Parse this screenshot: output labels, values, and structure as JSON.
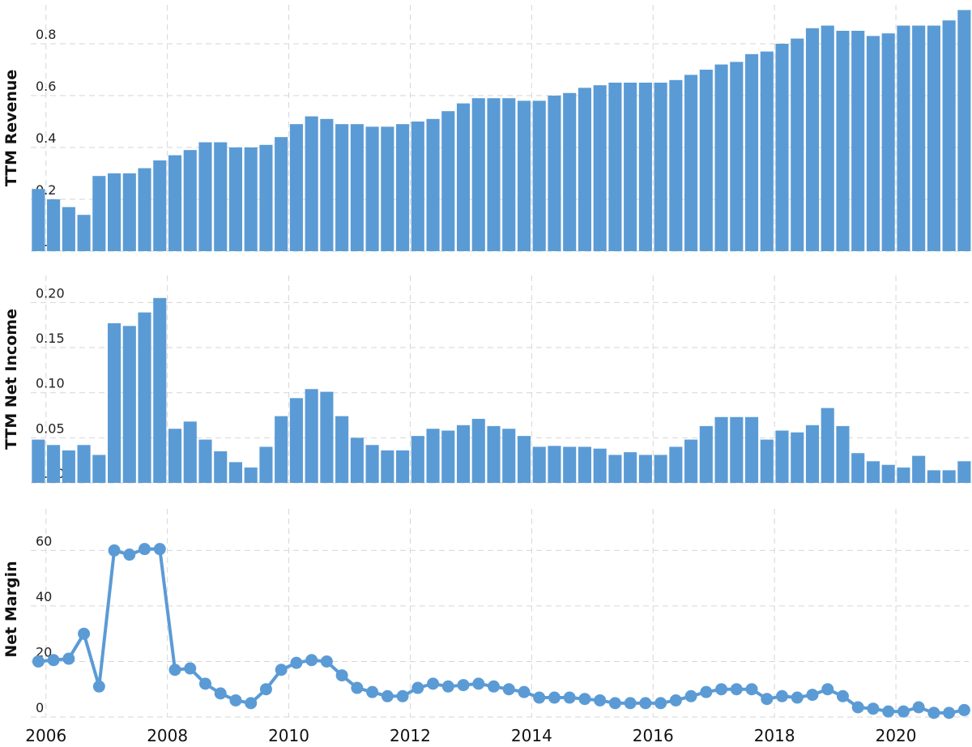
{
  "chart_data": [
    {
      "type": "bar",
      "ylabel": "TTM Revenue",
      "ylim": [
        0,
        0.95
      ],
      "yticks": [
        "0.0",
        "0.2",
        "0.4",
        "0.6",
        "0.8"
      ],
      "ytick_values": [
        0,
        0.2,
        0.4,
        0.6,
        0.8
      ],
      "color": "#5b9bd5",
      "x_start": 2005.75,
      "x_step": 0.25,
      "values": [
        0.24,
        0.2,
        0.17,
        0.14,
        0.29,
        0.3,
        0.3,
        0.32,
        0.35,
        0.37,
        0.39,
        0.42,
        0.42,
        0.4,
        0.4,
        0.41,
        0.44,
        0.49,
        0.52,
        0.51,
        0.49,
        0.49,
        0.48,
        0.48,
        0.49,
        0.5,
        0.51,
        0.54,
        0.57,
        0.59,
        0.59,
        0.59,
        0.58,
        0.58,
        0.6,
        0.61,
        0.63,
        0.64,
        0.65,
        0.65,
        0.65,
        0.65,
        0.66,
        0.68,
        0.7,
        0.72,
        0.73,
        0.76,
        0.77,
        0.8,
        0.82,
        0.86,
        0.87,
        0.85,
        0.85,
        0.83,
        0.84,
        0.87,
        0.87,
        0.87,
        0.89,
        0.93
      ]
    },
    {
      "type": "bar",
      "ylabel": "TTM Net Income",
      "ylim": [
        0,
        0.23
      ],
      "yticks": [
        "0.00",
        "0.05",
        "0.10",
        "0.15",
        "0.20"
      ],
      "ytick_values": [
        0,
        0.05,
        0.1,
        0.15,
        0.2
      ],
      "color": "#5b9bd5",
      "x_start": 2005.75,
      "x_step": 0.25,
      "values": [
        0.048,
        0.042,
        0.036,
        0.042,
        0.031,
        0.177,
        0.174,
        0.189,
        0.205,
        0.06,
        0.068,
        0.048,
        0.035,
        0.023,
        0.017,
        0.04,
        0.074,
        0.094,
        0.104,
        0.101,
        0.074,
        0.05,
        0.042,
        0.036,
        0.036,
        0.052,
        0.06,
        0.058,
        0.064,
        0.071,
        0.063,
        0.06,
        0.052,
        0.04,
        0.041,
        0.04,
        0.04,
        0.038,
        0.031,
        0.034,
        0.031,
        0.031,
        0.04,
        0.048,
        0.063,
        0.073,
        0.073,
        0.073,
        0.048,
        0.058,
        0.056,
        0.064,
        0.083,
        0.063,
        0.033,
        0.024,
        0.02,
        0.017,
        0.03,
        0.014,
        0.014,
        0.024
      ]
    },
    {
      "type": "line",
      "ylabel": "Net Margin",
      "ylim": [
        0,
        75
      ],
      "yticks": [
        "0",
        "20",
        "40",
        "60"
      ],
      "ytick_values": [
        0,
        20,
        40,
        60
      ],
      "color": "#5b9bd5",
      "x_start": 2005.75,
      "x_step": 0.25,
      "values": [
        20,
        20.5,
        21,
        30,
        11,
        60,
        58.5,
        60.5,
        60.5,
        17,
        17.5,
        12,
        8.5,
        6,
        5,
        10,
        17,
        19.5,
        20.5,
        20,
        15,
        10.5,
        9,
        7.5,
        7.5,
        10.5,
        12,
        11,
        11.5,
        12,
        11,
        10,
        9,
        7,
        7,
        7,
        6.5,
        6,
        5,
        5,
        5,
        5,
        6,
        7.5,
        9,
        10,
        10,
        10,
        6.5,
        7.5,
        7,
        8,
        10,
        7.5,
        3.5,
        3,
        2,
        2,
        3.5,
        1.5,
        1.5,
        2.5
      ]
    }
  ],
  "x_axis": {
    "xlim": [
      2005.75,
      2021.2
    ],
    "ticks": [
      "2006",
      "2008",
      "2010",
      "2012",
      "2014",
      "2016",
      "2018",
      "2020"
    ],
    "tick_values": [
      2006,
      2008,
      2010,
      2012,
      2014,
      2016,
      2018,
      2020
    ],
    "grid": true
  }
}
